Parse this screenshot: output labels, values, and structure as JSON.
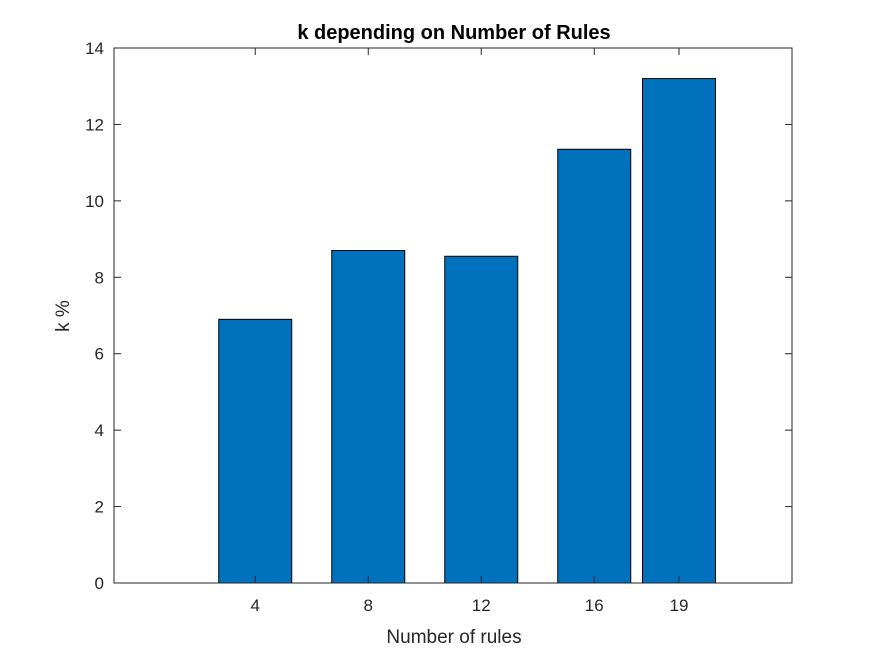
{
  "chart_data": {
    "type": "bar",
    "title": "k depending on Number of Rules",
    "xlabel": "Number of rules",
    "ylabel": "k %",
    "x": [
      4,
      8,
      12,
      16,
      19
    ],
    "categories": [
      "4",
      "8",
      "12",
      "16",
      "19"
    ],
    "values": [
      6.9,
      8.7,
      8.55,
      11.35,
      13.2
    ],
    "xlim": [
      -1,
      23
    ],
    "ylim": [
      0,
      14
    ],
    "yticks": [
      "0",
      "2",
      "4",
      "6",
      "8",
      "10",
      "12",
      "14"
    ],
    "bar_color": "#0072BD",
    "grid": false,
    "legend": "none"
  }
}
